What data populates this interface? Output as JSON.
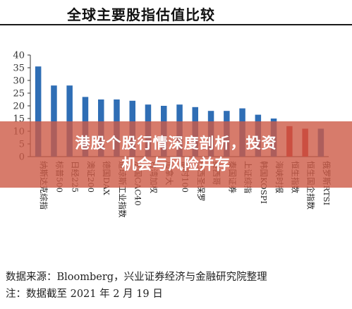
{
  "title": "全球主要股指估值比较",
  "chart_data": {
    "type": "bar",
    "categories": [
      "纳斯达克综指",
      "标普500",
      "日经225",
      "澳证200",
      "德国DAX",
      "道琼斯工业指数",
      "法国CAC40",
      "台湾加权",
      "加拿大",
      "富时100",
      "巴西圣保罗",
      "墨西哥",
      "泰国证券",
      "上证综指",
      "韩国KOSPI",
      "海峡时报",
      "恒生指数",
      "恒生国企指数",
      "俄罗斯RTSI"
    ],
    "values": [
      35.5,
      28,
      28,
      23.5,
      22.5,
      22.5,
      22,
      20.5,
      20,
      20.5,
      19.5,
      18,
      18,
      19,
      16.5,
      15,
      12,
      11,
      11
    ],
    "colors": [
      "#2f6eb5",
      "#2f6eb5",
      "#2f6eb5",
      "#2f6eb5",
      "#2f6eb5",
      "#2f6eb5",
      "#2f6eb5",
      "#2f6eb5",
      "#2f6eb5",
      "#2f6eb5",
      "#2f6eb5",
      "#2f6eb5",
      "#2f6eb5",
      "#2f6eb5",
      "#2f6eb5",
      "#2f6eb5",
      "#c0262d",
      "#c0262d",
      "#2f6eb5"
    ],
    "ylim": [
      0,
      40
    ],
    "yticks": [
      0,
      5,
      10,
      15,
      20,
      25,
      30,
      35,
      40
    ],
    "grid": false,
    "legend": "none"
  },
  "overlay": {
    "line1": "港股个股行情深度剖析，投资",
    "line2": "机会与风险并存"
  },
  "footer": {
    "source": "数据来源：Bloomberg，兴业证券经济与金融研究院整理",
    "note": "注：数据截至 2021 年 2 月 19 日"
  }
}
